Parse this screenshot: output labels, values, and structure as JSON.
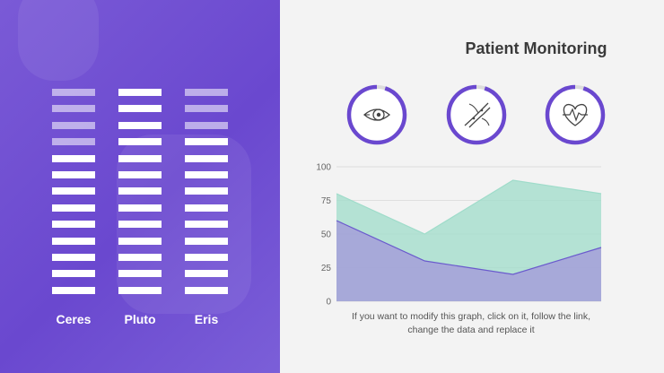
{
  "title": "Patient Monitoring",
  "caption": "If you want to modify this graph, click on it, follow the link, change the data and replace it",
  "columns": [
    {
      "label": "Ceres",
      "dim_bars": 4,
      "total_bars": 13
    },
    {
      "label": "Pluto",
      "dim_bars": 0,
      "total_bars": 13
    },
    {
      "label": "Eris",
      "dim_bars": 3,
      "total_bars": 13
    }
  ],
  "icons": [
    {
      "name": "eye-icon",
      "progress": 0.95
    },
    {
      "name": "blood-vessel-icon",
      "progress": 0.95
    },
    {
      "name": "heart-rate-icon",
      "progress": 0.95
    }
  ],
  "colors": {
    "purple": "#6a48cf",
    "series1": "#9fdcca",
    "series2": "#a59fd9",
    "series2_line": "#6a5acd",
    "ring_track": "#dcdcdc"
  },
  "chart_data": {
    "type": "area",
    "x": [
      1,
      2,
      3,
      4
    ],
    "ylim": [
      0,
      100
    ],
    "yticks": [
      0,
      25,
      50,
      75,
      100
    ],
    "grid": true,
    "series": [
      {
        "values": [
          80,
          50,
          90,
          80
        ]
      },
      {
        "values": [
          60,
          30,
          20,
          40
        ]
      }
    ]
  }
}
